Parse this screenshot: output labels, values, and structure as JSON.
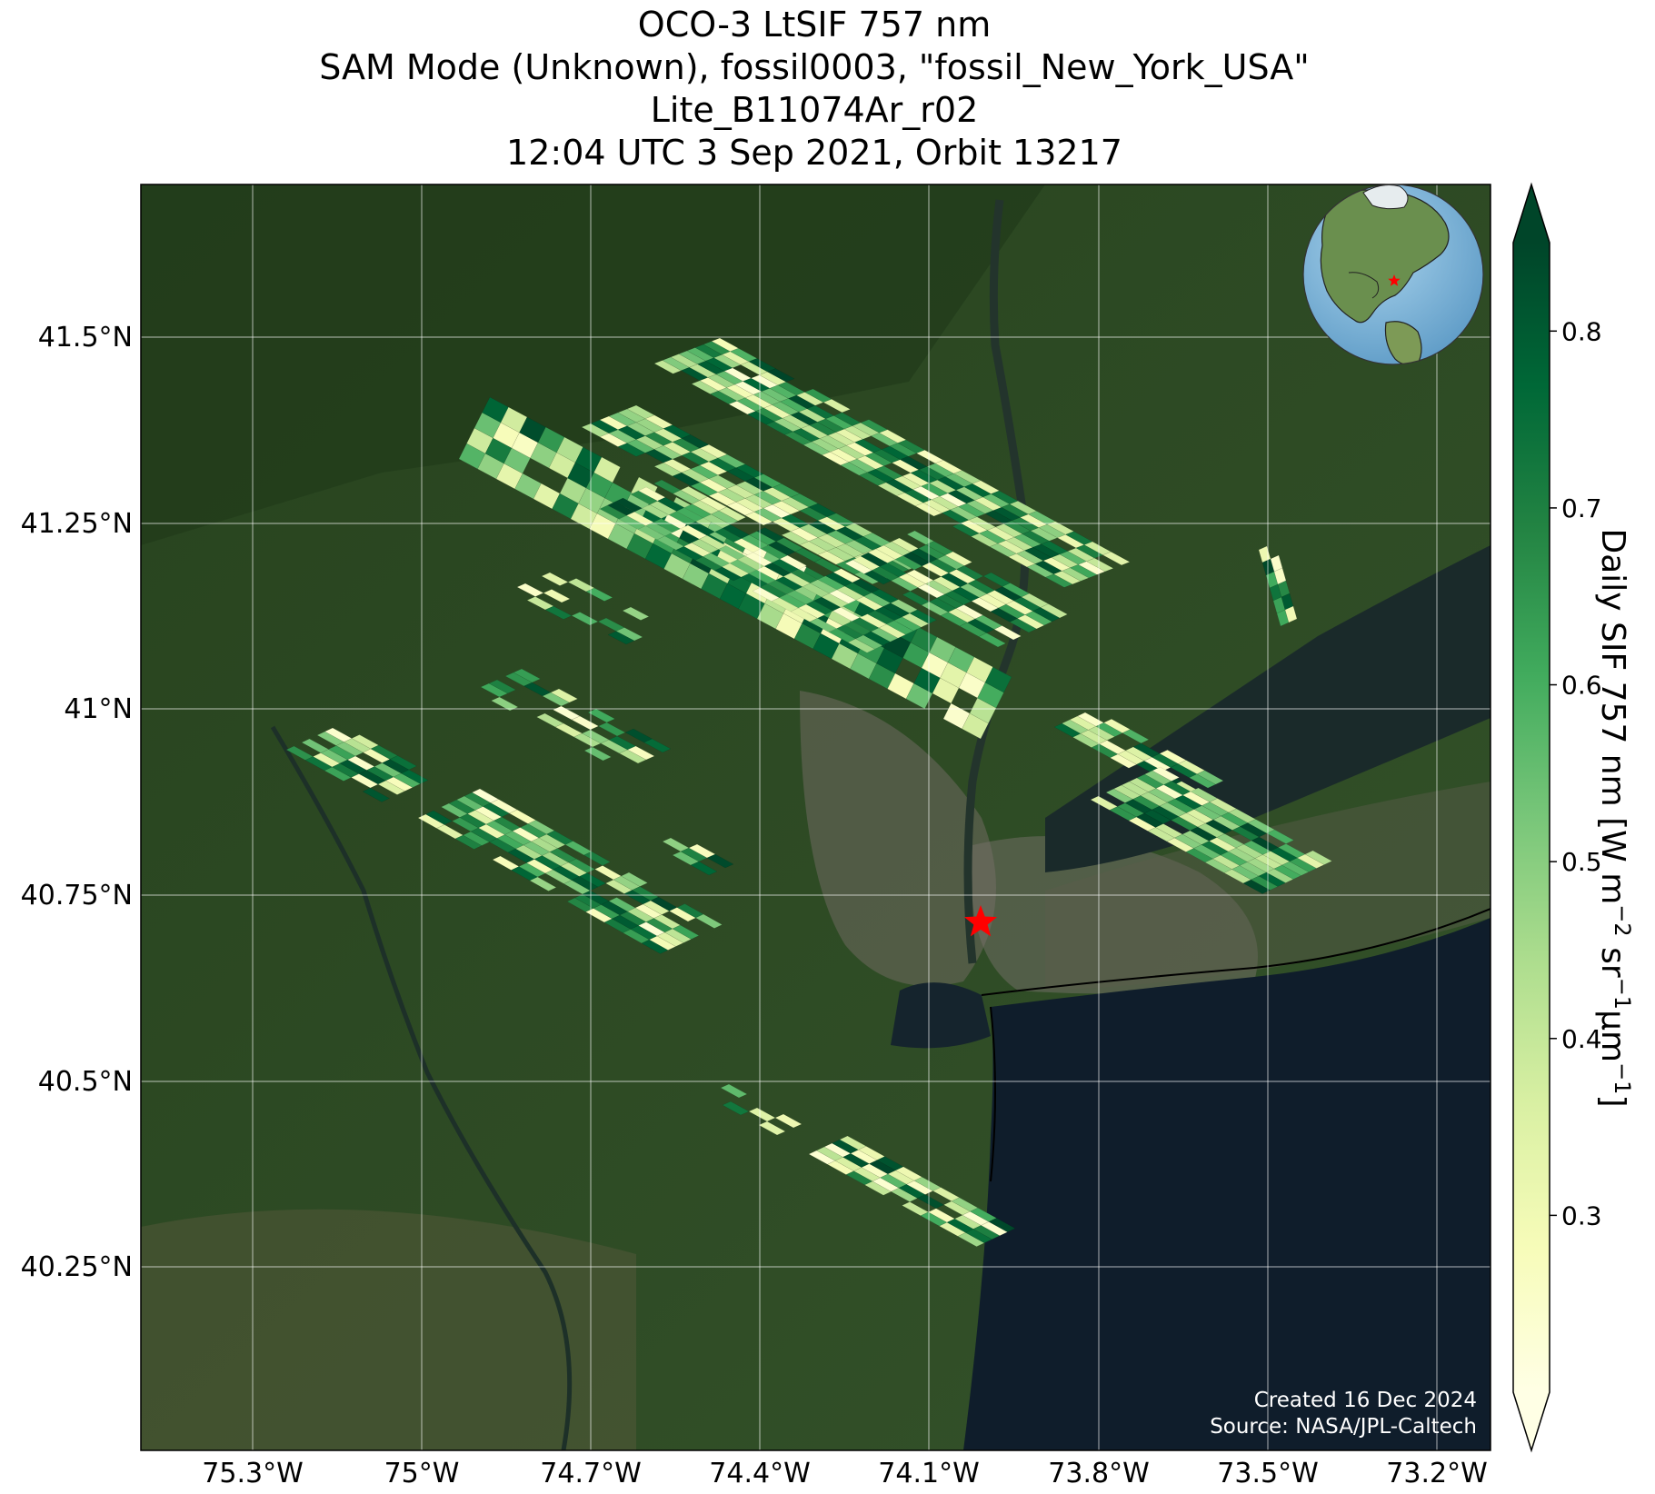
{
  "title": {
    "line1": "OCO-3 LtSIF 757 nm",
    "line2": "SAM Mode (Unknown), fossil0003, \"fossil_New_York_USA\"",
    "line3": "Lite_B11074Ar_r02",
    "line4": "12:04 UTC 3 Sep 2021, Orbit 13217"
  },
  "axes": {
    "lon_ticks": [
      "75.3°W",
      "75°W",
      "74.7°W",
      "74.4°W",
      "74.1°W",
      "73.8°W",
      "73.5°W",
      "73.2°W"
    ],
    "lat_ticks": [
      "41.5°N",
      "41.25°N",
      "41°N",
      "40.75°N",
      "40.5°N",
      "40.25°N"
    ]
  },
  "colorbar": {
    "label_main": "Daily SIF 757 nm [W m",
    "label_sup1": "−2",
    "label_mid": " sr",
    "label_sup2": "−1",
    "label_mu": "μm",
    "label_sup3": "−1",
    "label_end": "]",
    "ticks": [
      "0.3",
      "0.4",
      "0.5",
      "0.6",
      "0.7",
      "0.8"
    ],
    "tick_values": [
      0.3,
      0.4,
      0.5,
      0.6,
      0.7,
      0.8
    ],
    "vmin": 0.2,
    "vmax": 0.85,
    "extend": "both",
    "colormap": [
      "#ffffe5",
      "#f7fcb9",
      "#d9f0a3",
      "#addd8e",
      "#78c679",
      "#41ab5d",
      "#238443",
      "#006837",
      "#004529"
    ]
  },
  "credits": {
    "created": "Created 16 Dec 2024",
    "source": "Source: NASA/JPL-Caltech"
  },
  "target_marker": {
    "symbol": "star",
    "color": "#ff0000",
    "location": "fossil_New_York_USA"
  },
  "map": {
    "lon_range": [
      -75.45,
      -73.15
    ],
    "lat_range": [
      40.05,
      41.7
    ],
    "background": "satellite imagery",
    "land_color": "#2d4a22",
    "water_color": "#0f1d2b"
  },
  "inset": {
    "type": "globe",
    "marker_color": "#ff0000"
  }
}
